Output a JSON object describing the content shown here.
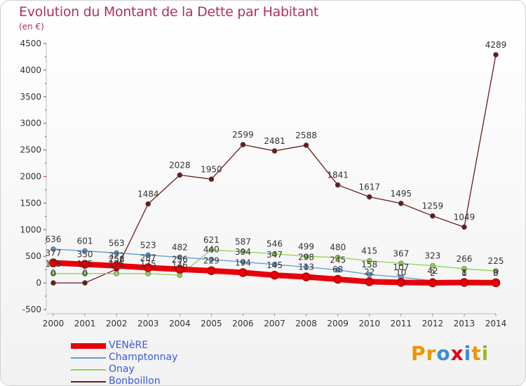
{
  "header": {
    "title": "Evolution du Montant de la Dette par Habitant",
    "subtitle": "(en €)"
  },
  "logo": {
    "text": "Proxiti"
  },
  "chart_data": {
    "type": "line",
    "title": "Evolution du Montant de la Dette par Habitant",
    "subtitle": "(en €)",
    "xlabel": "",
    "ylabel": "",
    "x": [
      2000,
      2001,
      2002,
      2003,
      2004,
      2005,
      2006,
      2007,
      2008,
      2009,
      2010,
      2011,
      2012,
      2013,
      2014
    ],
    "ylim": [
      -500,
      4500
    ],
    "yticks": [
      -500,
      0,
      500,
      1000,
      1500,
      2000,
      2500,
      3000,
      3500,
      4000,
      4500
    ],
    "grid": false,
    "legend_position": "bottom-left",
    "series": [
      {
        "name": "VENèRE",
        "color": "#e8000b",
        "values": [
          377,
          350,
          322,
          287,
          256,
          229,
          194,
          145,
          113,
          68,
          22,
          10,
          2,
          8,
          3
        ],
        "labels": [
          "377",
          "350",
          "322",
          "287",
          "256",
          "229",
          "194",
          "145",
          "113",
          "68",
          "22",
          "10",
          "2",
          "8",
          "3"
        ]
      },
      {
        "name": "Champtonnay",
        "color": "#5b9bd5",
        "values": [
          636,
          601,
          563,
          523,
          482,
          440,
          394,
          347,
          298,
          245,
          158,
          107,
          42,
          1,
          0
        ],
        "labels": [
          "636",
          "601",
          "563",
          "523",
          "482",
          "440",
          "394",
          "347",
          "298",
          "245",
          "158",
          "107",
          "42",
          "1",
          "0"
        ]
      },
      {
        "name": "Onay",
        "color": "#92d050",
        "values": [
          175,
          175,
          175,
          175,
          146,
          621,
          587,
          546,
          499,
          480,
          415,
          367,
          323,
          266,
          225
        ],
        "labels": [
          "175",
          "175",
          "175",
          "175",
          "146",
          "621",
          "587",
          "546",
          "499",
          "480",
          "415",
          "367",
          "323",
          "266",
          "225"
        ]
      },
      {
        "name": "Bonboillon",
        "color": "#6b1a1a",
        "values": [
          0,
          0,
          258,
          1484,
          2028,
          1950,
          2599,
          2481,
          2588,
          1841,
          1617,
          1495,
          1259,
          1049,
          4289
        ],
        "labels": [
          "0",
          "0",
          "258",
          "1484",
          "2028",
          "1950",
          "2599",
          "2481",
          "2588",
          "1841",
          "1617",
          "1495",
          "1259",
          "1049",
          "4289"
        ]
      }
    ]
  }
}
